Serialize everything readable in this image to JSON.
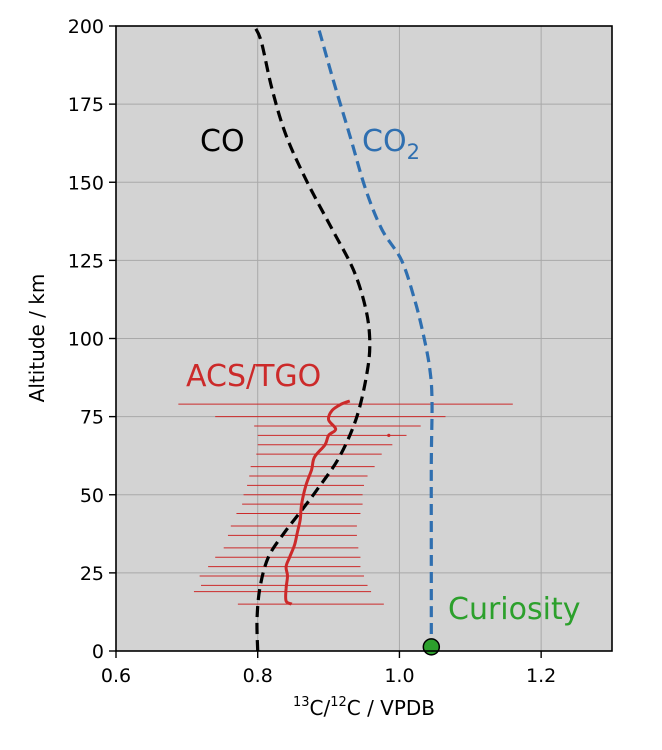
{
  "chart_data": {
    "type": "line",
    "xlabel_parts": [
      "13",
      "C/",
      "12",
      "C / VPDB"
    ],
    "ylabel": "Altitude / km",
    "xlim": [
      0.6,
      1.3
    ],
    "ylim": [
      0,
      200
    ],
    "xticks": [
      0.6,
      0.8,
      1.0,
      1.2
    ],
    "xtick_labels": [
      "0.6",
      "0.8",
      "1.0",
      "1.2"
    ],
    "yticks": [
      0,
      25,
      50,
      75,
      100,
      125,
      150,
      175,
      200
    ],
    "ytick_labels": [
      "0",
      "25",
      "50",
      "75",
      "100",
      "125",
      "150",
      "175",
      "200"
    ],
    "grid": true,
    "background": "#d3d3d3",
    "series": [
      {
        "name": "CO",
        "color": "#000000",
        "style": "dashed",
        "points": [
          [
            0.8,
            0
          ],
          [
            0.799,
            10
          ],
          [
            0.803,
            20
          ],
          [
            0.815,
            30
          ],
          [
            0.838,
            38
          ],
          [
            0.862,
            45
          ],
          [
            0.885,
            52
          ],
          [
            0.915,
            62
          ],
          [
            0.94,
            75
          ],
          [
            0.955,
            90
          ],
          [
            0.958,
            100
          ],
          [
            0.952,
            110
          ],
          [
            0.935,
            122
          ],
          [
            0.905,
            135
          ],
          [
            0.87,
            150
          ],
          [
            0.84,
            165
          ],
          [
            0.82,
            180
          ],
          [
            0.805,
            195
          ],
          [
            0.795,
            200
          ]
        ]
      },
      {
        "name": "CO₂",
        "color": "#2f6fb0",
        "style": "dashed",
        "points": [
          [
            1.045,
            0
          ],
          [
            1.045,
            30
          ],
          [
            1.045,
            60
          ],
          [
            1.046,
            80
          ],
          [
            1.043,
            90
          ],
          [
            1.035,
            100
          ],
          [
            1.022,
            112
          ],
          [
            1.003,
            125
          ],
          [
            0.975,
            135
          ],
          [
            0.952,
            148
          ],
          [
            0.93,
            165
          ],
          [
            0.91,
            180
          ],
          [
            0.89,
            196
          ],
          [
            0.885,
            200
          ]
        ]
      },
      {
        "name": "ACS/TGO",
        "color": "#cc2a2a",
        "style": "solid",
        "points": [
          [
            0.848,
            15
          ],
          [
            0.84,
            16
          ],
          [
            0.84,
            20
          ],
          [
            0.842,
            24
          ],
          [
            0.84,
            27
          ],
          [
            0.845,
            30
          ],
          [
            0.852,
            34
          ],
          [
            0.856,
            38
          ],
          [
            0.86,
            42
          ],
          [
            0.862,
            47
          ],
          [
            0.868,
            53
          ],
          [
            0.876,
            58
          ],
          [
            0.88,
            62
          ],
          [
            0.895,
            66
          ],
          [
            0.9,
            69
          ],
          [
            0.91,
            71
          ],
          [
            0.9,
            74
          ],
          [
            0.905,
            77
          ],
          [
            0.918,
            79
          ],
          [
            0.93,
            80
          ]
        ],
        "error_bars": [
          [
            15,
            0.772,
            0.978
          ],
          [
            19,
            0.71,
            0.96
          ],
          [
            21,
            0.72,
            0.955
          ],
          [
            24,
            0.718,
            0.95
          ],
          [
            27,
            0.73,
            0.945
          ],
          [
            30,
            0.74,
            0.945
          ],
          [
            33,
            0.752,
            0.942
          ],
          [
            37,
            0.758,
            0.94
          ],
          [
            40,
            0.762,
            0.94
          ],
          [
            44,
            0.77,
            0.945
          ],
          [
            47,
            0.778,
            0.948
          ],
          [
            50,
            0.78,
            0.948
          ],
          [
            53,
            0.785,
            0.95
          ],
          [
            56,
            0.788,
            0.955
          ],
          [
            59,
            0.79,
            0.965
          ],
          [
            63,
            0.798,
            0.975
          ],
          [
            66,
            0.8,
            0.99
          ],
          [
            69,
            0.8,
            1.01
          ],
          [
            72,
            0.795,
            1.03
          ],
          [
            75,
            0.74,
            1.065
          ],
          [
            79,
            0.688,
            1.16
          ]
        ],
        "outlier": [
          0.985,
          69
        ]
      }
    ],
    "markers": [
      {
        "name": "Curiosity",
        "x": 1.045,
        "y": 1,
        "color": "#2ca02c"
      }
    ],
    "annotations": [
      {
        "text": "CO",
        "color": "#000000"
      },
      {
        "text": "CO",
        "subscript": "2",
        "color": "#2f6fb0"
      },
      {
        "text": "ACS/TGO",
        "color": "#cc2a2a"
      },
      {
        "text": "Curiosity",
        "color": "#2ca02c"
      }
    ]
  }
}
